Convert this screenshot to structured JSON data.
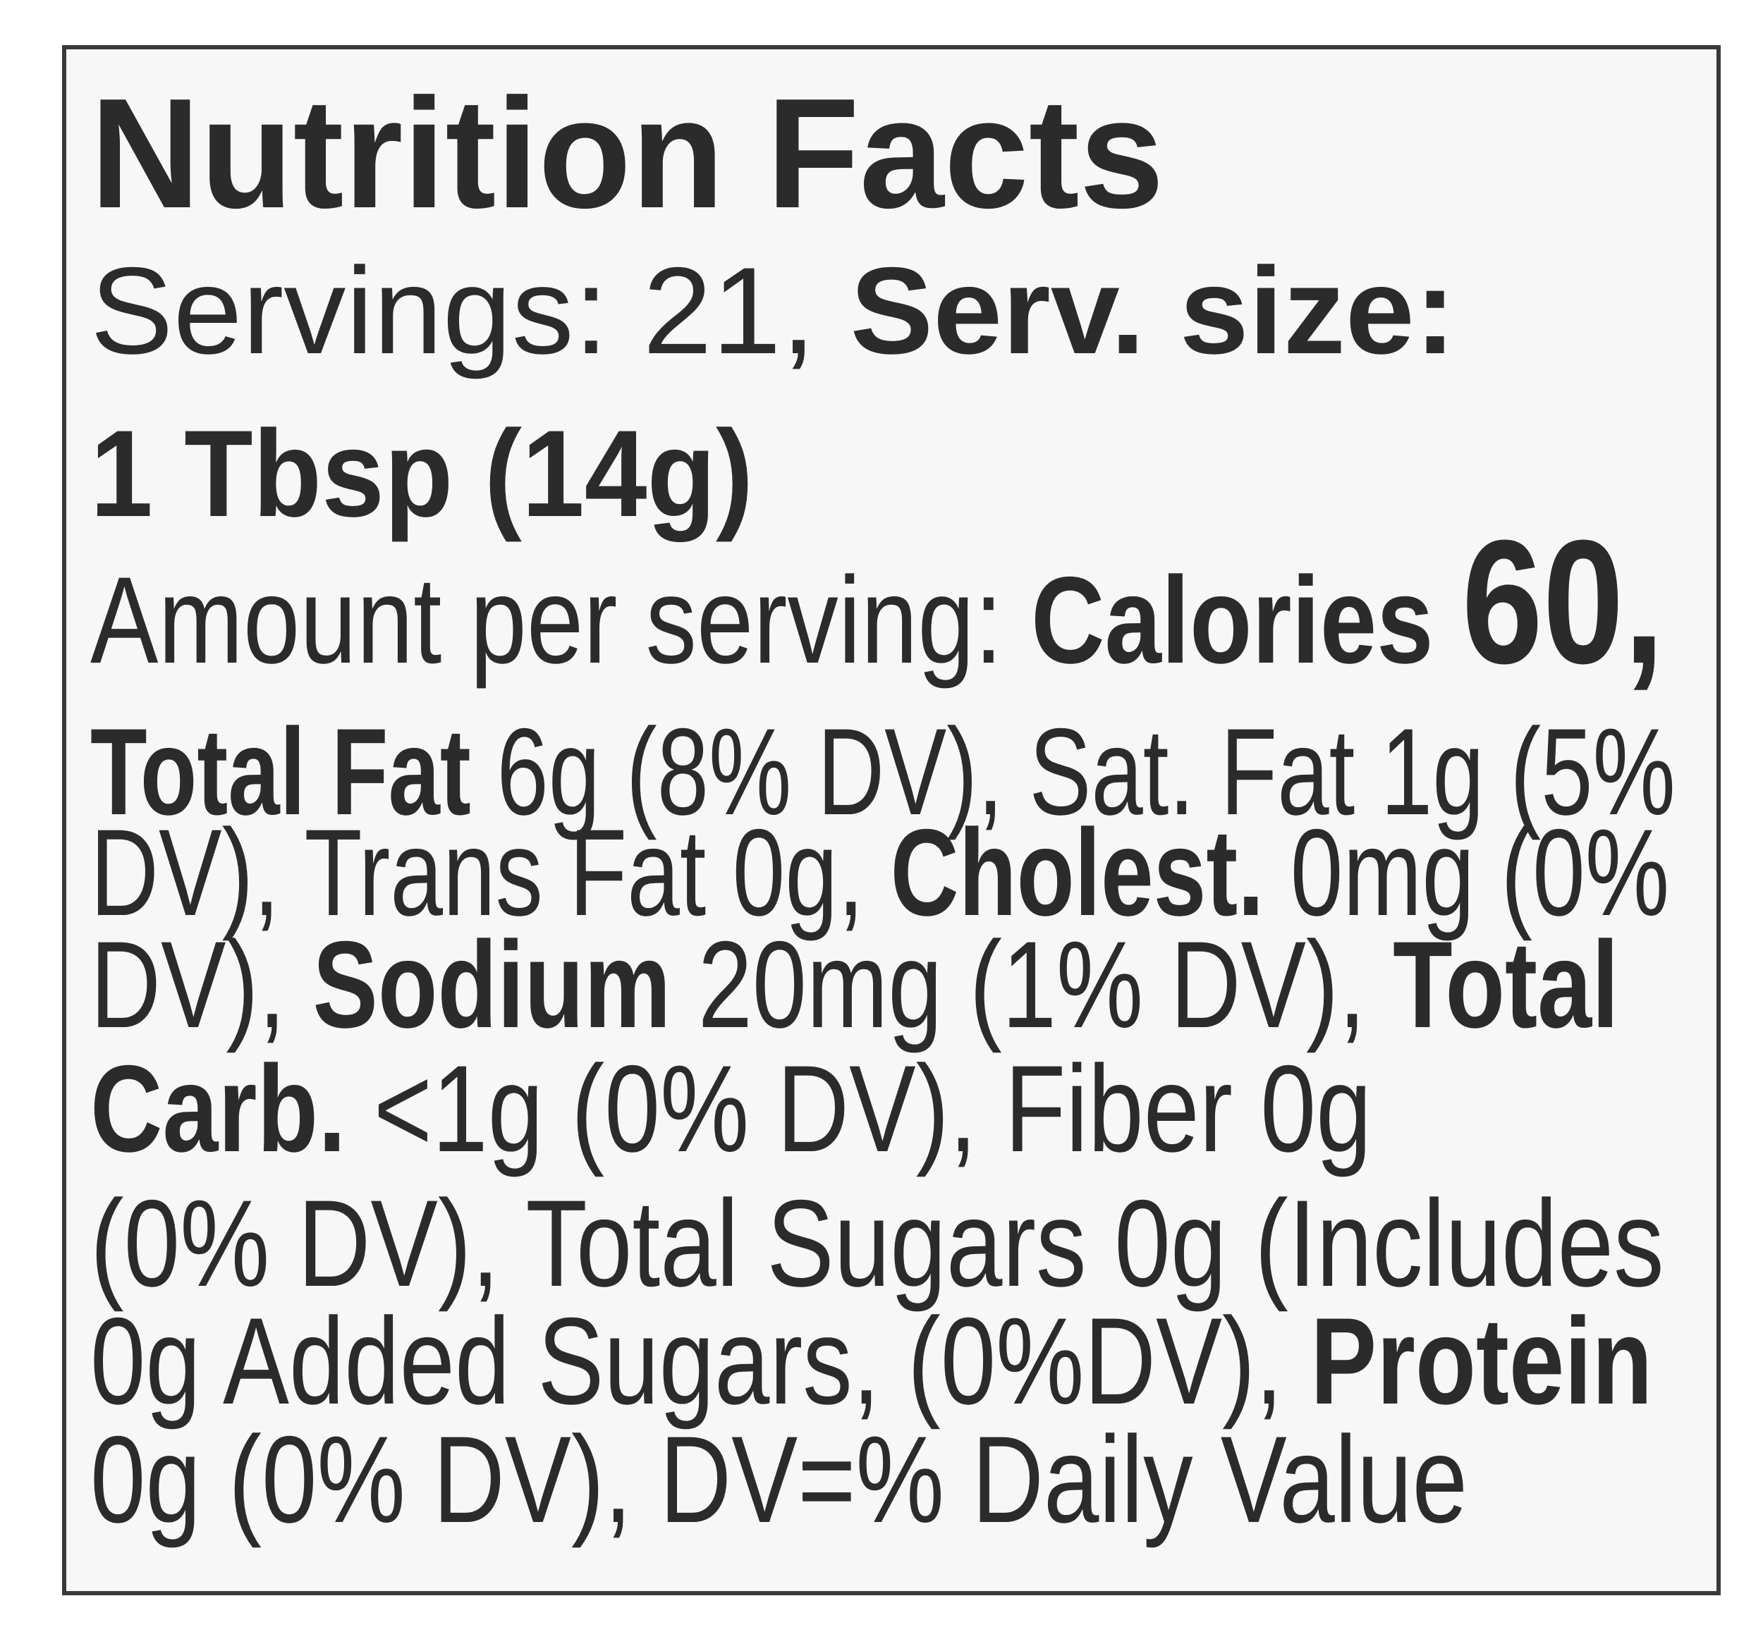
{
  "label": {
    "title": "Nutrition Facts",
    "lines": [
      [
        {
          "text": "Servings: 21, ",
          "style": "regular"
        },
        {
          "text": "Serv. size:",
          "style": "bold"
        }
      ],
      [
        {
          "text": "1 Tbsp (14g)",
          "style": "bold"
        }
      ],
      [
        {
          "text": "Amount per serving: ",
          "style": "regular"
        },
        {
          "text": "Calories ",
          "style": "bold"
        },
        {
          "text": "60,",
          "style": "large"
        }
      ],
      [
        {
          "text": "Total Fat ",
          "style": "bold"
        },
        {
          "text": "6g (8% DV), Sat. Fat 1g (5%",
          "style": "regular"
        }
      ],
      [
        {
          "text": "DV), Trans Fat 0g, ",
          "style": "regular"
        },
        {
          "text": "Cholest.",
          "style": "bold"
        },
        {
          "text": " 0mg (0%",
          "style": "regular"
        }
      ],
      [
        {
          "text": "DV), ",
          "style": "regular"
        },
        {
          "text": "Sodium",
          "style": "bold"
        },
        {
          "text": " 20mg (1% DV), ",
          "style": "regular"
        },
        {
          "text": "Total",
          "style": "bold"
        }
      ],
      [
        {
          "text": "Carb.",
          "style": "bold"
        },
        {
          "text": " <1g (0% DV), Fiber 0g",
          "style": "regular"
        }
      ],
      [
        {
          "text": "(0% DV), Total Sugars 0g (Includes",
          "style": "regular"
        }
      ],
      [
        {
          "text": "0g Added Sugars, (0%DV), ",
          "style": "regular"
        },
        {
          "text": "Protein",
          "style": "bold"
        }
      ],
      [
        {
          "text": "0g (0% DV), DV=% Daily Value",
          "style": "regular"
        }
      ]
    ]
  }
}
